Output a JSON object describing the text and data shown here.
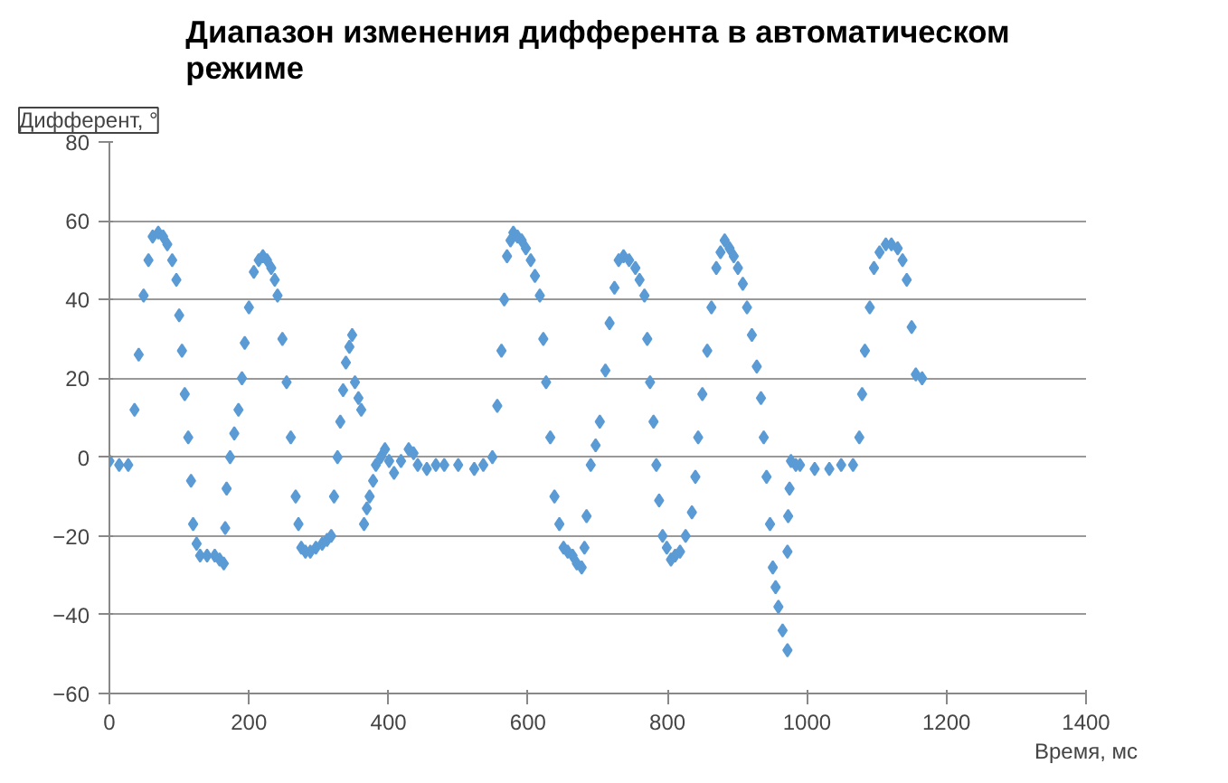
{
  "chart_data": {
    "type": "scatter",
    "title": "Диапазон изменения дифферента в автоматическом режиме",
    "xlabel": "Время, мс",
    "ylabel": "Дифферент, °",
    "xlim": [
      0,
      1400
    ],
    "xticks": [
      0,
      200,
      400,
      600,
      800,
      1000,
      1200,
      1400
    ],
    "ylim": [
      -60,
      80
    ],
    "yticks": [
      -60,
      -40,
      -20,
      0,
      20,
      40,
      60,
      80
    ],
    "grid": "y",
    "marker": "diamond",
    "series": [
      {
        "color": "#5b9bd5",
        "x": [
          0,
          14,
          27,
          36,
          42,
          49,
          56,
          62,
          70,
          77,
          83,
          90,
          96,
          100,
          104,
          108,
          113,
          117,
          120,
          125,
          130,
          140,
          151,
          158,
          164,
          166,
          168,
          173,
          179,
          185,
          190,
          194,
          200,
          207,
          214,
          220,
          226,
          232,
          237,
          241,
          248,
          254,
          260,
          267,
          271,
          275,
          281,
          288,
          296,
          305,
          312,
          318,
          322,
          327,
          331,
          335,
          339,
          344,
          348,
          352,
          357,
          361,
          365,
          369,
          373,
          378,
          382,
          389,
          395,
          401,
          408,
          418,
          429,
          436,
          442,
          455,
          468,
          480,
          500,
          523,
          536,
          549,
          556,
          562,
          566,
          570,
          575,
          579,
          585,
          591,
          597,
          604,
          610,
          617,
          622,
          626,
          632,
          638,
          645,
          651,
          657,
          664,
          670,
          677,
          681,
          684,
          690,
          697,
          703,
          711,
          717,
          724,
          730,
          737,
          745,
          754,
          760,
          767,
          771,
          775,
          780,
          784,
          788,
          793,
          799,
          805,
          811,
          818,
          826,
          835,
          840,
          844,
          850,
          857,
          863,
          870,
          876,
          882,
          889,
          895,
          901,
          908,
          914,
          921,
          928,
          934,
          938,
          942,
          947,
          951,
          955,
          959,
          965,
          972,
          972,
          973,
          975,
          977,
          984,
          990,
          1011,
          1032,
          1049,
          1066,
          1075,
          1079,
          1083,
          1090,
          1096,
          1104,
          1113,
          1121,
          1130,
          1137,
          1143,
          1150,
          1156,
          1165
        ],
        "values": [
          -1,
          -2,
          -2,
          12,
          26,
          41,
          50,
          56,
          57,
          56,
          54,
          50,
          45,
          36,
          27,
          16,
          5,
          -6,
          -17,
          -22,
          -25,
          -25,
          -25,
          -26,
          -27,
          -18,
          -8,
          0,
          6,
          12,
          20,
          29,
          38,
          47,
          50,
          51,
          50,
          48,
          45,
          41,
          30,
          19,
          5,
          -10,
          -17,
          -23,
          -24,
          -24,
          -23,
          -22,
          -21,
          -20,
          -10,
          0,
          9,
          17,
          24,
          28,
          31,
          19,
          15,
          12,
          -17,
          -13,
          -10,
          -6,
          -2,
          0,
          2,
          -1,
          -4,
          -1,
          2,
          1,
          -2,
          -3,
          -2,
          -2,
          -2,
          -3,
          -2,
          0,
          13,
          27,
          40,
          51,
          55,
          57,
          56,
          55,
          53,
          50,
          46,
          41,
          30,
          19,
          5,
          -10,
          -17,
          -23,
          -24,
          -25,
          -27,
          -28,
          -23,
          -15,
          -2,
          3,
          9,
          22,
          34,
          43,
          50,
          51,
          50,
          48,
          45,
          41,
          30,
          19,
          9,
          -2,
          -11,
          -20,
          -23,
          -26,
          -25,
          -24,
          -20,
          -14,
          -5,
          5,
          16,
          27,
          38,
          48,
          52,
          55,
          53,
          51,
          48,
          44,
          38,
          31,
          23,
          15,
          5,
          -5,
          -17,
          -28,
          -33,
          -38,
          -44,
          -49,
          -24,
          -15,
          -8,
          -1,
          -2,
          -2,
          -3,
          -3,
          -2,
          -2,
          5,
          16,
          27,
          38,
          48,
          52,
          54,
          54,
          53,
          50,
          45,
          33,
          21,
          20
        ]
      }
    ]
  }
}
